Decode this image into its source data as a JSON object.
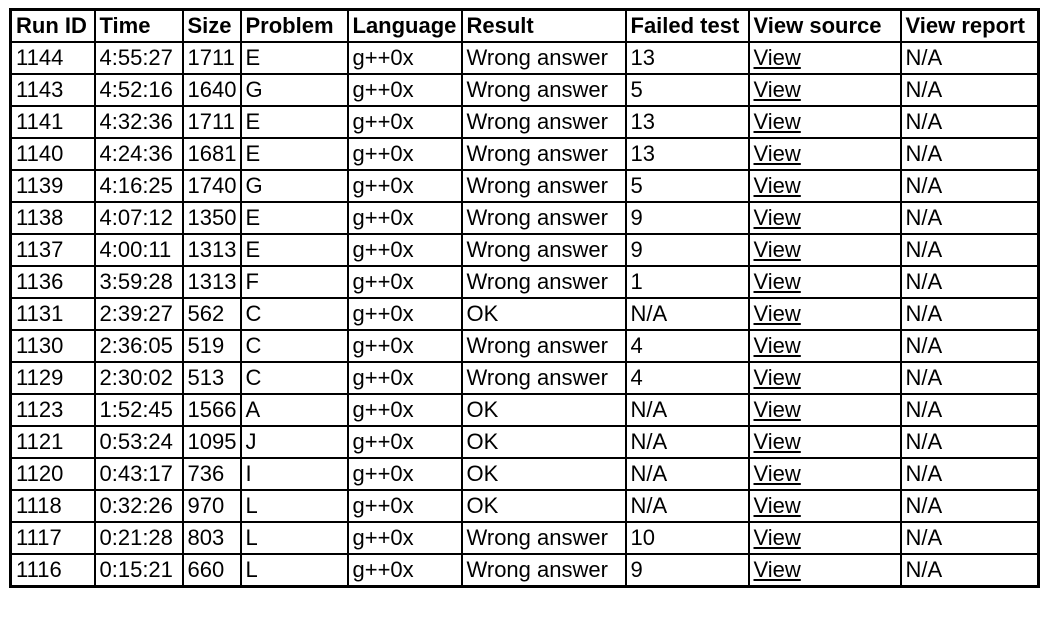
{
  "table": {
    "columns": [
      "Run ID",
      "Time",
      "Size",
      "Problem",
      "Language",
      "Result",
      "Failed test",
      "View source",
      "View report"
    ],
    "column_keys": [
      "run-id",
      "time",
      "size",
      "problem",
      "language",
      "result",
      "failed-test",
      "view-source",
      "view-report"
    ],
    "link_columns": [
      7
    ],
    "link_name": "view-source-link",
    "rows": [
      [
        "1144",
        "4:55:27",
        "1711",
        "E",
        "g++0x",
        "Wrong answer",
        "13",
        "View",
        "N/A"
      ],
      [
        "1143",
        "4:52:16",
        "1640",
        "G",
        "g++0x",
        "Wrong answer",
        "5",
        "View",
        "N/A"
      ],
      [
        "1141",
        "4:32:36",
        "1711",
        "E",
        "g++0x",
        "Wrong answer",
        "13",
        "View",
        "N/A"
      ],
      [
        "1140",
        "4:24:36",
        "1681",
        "E",
        "g++0x",
        "Wrong answer",
        "13",
        "View",
        "N/A"
      ],
      [
        "1139",
        "4:16:25",
        "1740",
        "G",
        "g++0x",
        "Wrong answer",
        "5",
        "View",
        "N/A"
      ],
      [
        "1138",
        "4:07:12",
        "1350",
        "E",
        "g++0x",
        "Wrong answer",
        "9",
        "View",
        "N/A"
      ],
      [
        "1137",
        "4:00:11",
        "1313",
        "E",
        "g++0x",
        "Wrong answer",
        "9",
        "View",
        "N/A"
      ],
      [
        "1136",
        "3:59:28",
        "1313",
        "F",
        "g++0x",
        "Wrong answer",
        "1",
        "View",
        "N/A"
      ],
      [
        "1131",
        "2:39:27",
        "562",
        "C",
        "g++0x",
        "OK",
        "N/A",
        "View",
        "N/A"
      ],
      [
        "1130",
        "2:36:05",
        "519",
        "C",
        "g++0x",
        "Wrong answer",
        "4",
        "View",
        "N/A"
      ],
      [
        "1129",
        "2:30:02",
        "513",
        "C",
        "g++0x",
        "Wrong answer",
        "4",
        "View",
        "N/A"
      ],
      [
        "1123",
        "1:52:45",
        "1566",
        "A",
        "g++0x",
        "OK",
        "N/A",
        "View",
        "N/A"
      ],
      [
        "1121",
        "0:53:24",
        "1095",
        "J",
        "g++0x",
        "OK",
        "N/A",
        "View",
        "N/A"
      ],
      [
        "1120",
        "0:43:17",
        "736",
        "I",
        "g++0x",
        "OK",
        "N/A",
        "View",
        "N/A"
      ],
      [
        "1118",
        "0:32:26",
        "970",
        "L",
        "g++0x",
        "OK",
        "N/A",
        "View",
        "N/A"
      ],
      [
        "1117",
        "0:21:28",
        "803",
        "L",
        "g++0x",
        "Wrong answer",
        "10",
        "View",
        "N/A"
      ],
      [
        "1116",
        "0:15:21",
        "660",
        "L",
        "g++0x",
        "Wrong answer",
        "9",
        "View",
        "N/A"
      ]
    ],
    "colors": {
      "border": "#000000",
      "text": "#000000",
      "background": "#ffffff",
      "link": "#000000"
    }
  }
}
